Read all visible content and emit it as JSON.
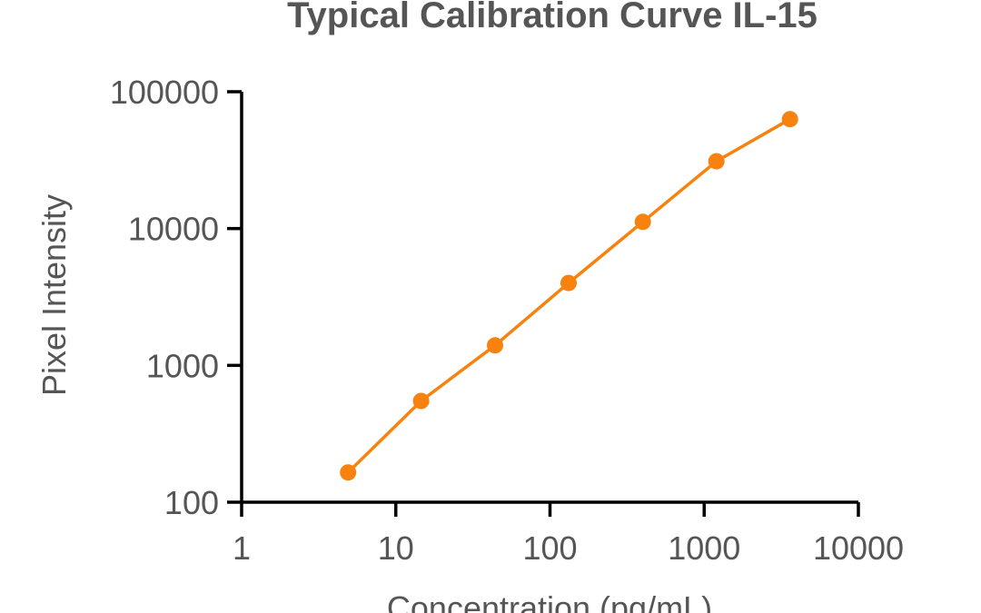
{
  "chart_data": {
    "type": "line",
    "title": "Typical Calibration Curve IL-15",
    "xlabel": "Concentration (pg/mL)",
    "ylabel": "Pixel Intensity",
    "x_scale": "log",
    "y_scale": "log",
    "xlim": [
      1,
      10000
    ],
    "ylim": [
      100,
      100000
    ],
    "x_ticks": [
      1,
      10,
      100,
      1000,
      10000
    ],
    "x_tick_labels": [
      "1",
      "10",
      "100",
      "1000",
      "10000"
    ],
    "y_ticks": [
      100,
      1000,
      10000,
      100000
    ],
    "y_tick_labels": [
      "100",
      "1000",
      "10000",
      "100000"
    ],
    "grid": false,
    "legend": false,
    "series": [
      {
        "color": "#F7820F",
        "marker": "circle",
        "x": [
          4.9,
          14.6,
          44,
          132,
          400,
          1200,
          3600
        ],
        "y": [
          165,
          550,
          1400,
          4000,
          11200,
          31000,
          63000
        ]
      }
    ]
  }
}
